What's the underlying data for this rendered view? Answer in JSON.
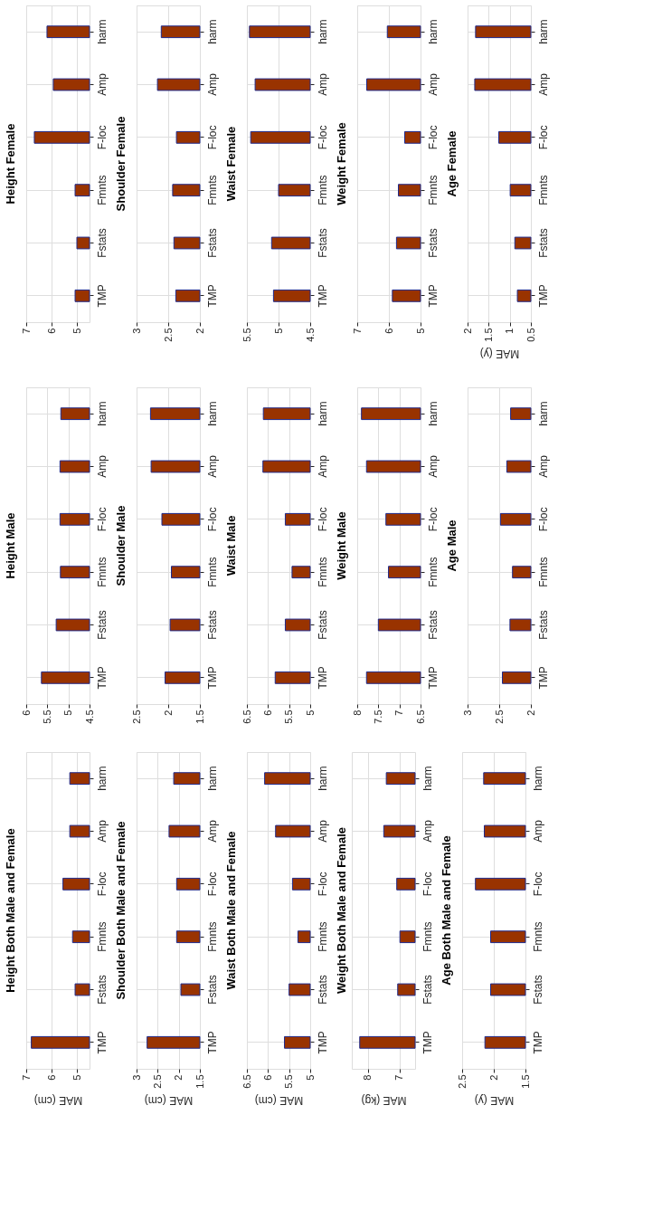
{
  "chart_data": [
    {
      "type": "bar",
      "orientation": "horizontal",
      "title": "Height  Female",
      "categories": [
        "harm",
        "Amp",
        "F-loc",
        "Fmnts",
        "Fstats",
        "TMP"
      ],
      "values": [
        6.18,
        5.93,
        6.68,
        5.07,
        5.0,
        5.07
      ],
      "color": "#993300",
      "xlim": [
        7,
        4.5
      ],
      "xticks": [
        7,
        6,
        5
      ],
      "grid": true
    },
    {
      "type": "bar",
      "orientation": "horizontal",
      "title": "Shoulder  Female",
      "categories": [
        "harm",
        "Amp",
        "F-loc",
        "Fmnts",
        "Fstats",
        "TMP"
      ],
      "values": [
        2.61,
        2.67,
        2.37,
        2.43,
        2.41,
        2.38
      ],
      "color": "#993300",
      "xlim": [
        3,
        2
      ],
      "xticks": [
        3,
        2.5,
        2
      ],
      "grid": true
    },
    {
      "type": "bar",
      "orientation": "horizontal",
      "title": "Waist  Female",
      "categories": [
        "harm",
        "Amp",
        "F-loc",
        "Fmnts",
        "Fstats",
        "TMP"
      ],
      "values": [
        5.46,
        5.37,
        5.44,
        5.0,
        5.11,
        5.08
      ],
      "color": "#993300",
      "xlim": [
        5.5,
        4.5
      ],
      "xticks": [
        5.5,
        5,
        4.5
      ],
      "grid": true
    },
    {
      "type": "bar",
      "orientation": "horizontal",
      "title": "Weight  Female",
      "categories": [
        "harm",
        "Amp",
        "F-loc",
        "Fmnts",
        "Fstats",
        "TMP"
      ],
      "values": [
        6.05,
        6.7,
        5.5,
        5.7,
        5.76,
        5.89
      ],
      "color": "#993300",
      "xlim": [
        7,
        5
      ],
      "xticks": [
        7,
        6,
        5
      ],
      "grid": true
    },
    {
      "type": "bar",
      "orientation": "horizontal",
      "title": "Age  Female",
      "xlabel": "MAE (y)",
      "categories": [
        "harm",
        "Amp",
        "F-loc",
        "Fmnts",
        "Fstats",
        "TMP"
      ],
      "values": [
        1.81,
        1.83,
        1.26,
        0.99,
        0.88,
        0.82
      ],
      "color": "#993300",
      "xlim": [
        2,
        0.5
      ],
      "xticks": [
        2,
        1.5,
        1,
        0.5
      ],
      "grid": true
    },
    {
      "type": "bar",
      "orientation": "horizontal",
      "title": "Height  Male",
      "categories": [
        "harm",
        "Amp",
        "F-loc",
        "Fmnts",
        "Fstats",
        "TMP"
      ],
      "values": [
        5.18,
        5.2,
        5.2,
        5.19,
        5.29,
        5.64
      ],
      "color": "#993300",
      "xlim": [
        6,
        4.5
      ],
      "xticks": [
        6,
        5.5,
        5,
        4.5
      ],
      "grid": true
    },
    {
      "type": "bar",
      "orientation": "horizontal",
      "title": "Shoulder  Male",
      "categories": [
        "harm",
        "Amp",
        "F-loc",
        "Fmnts",
        "Fstats",
        "TMP"
      ],
      "values": [
        2.28,
        2.27,
        2.1,
        1.95,
        1.97,
        2.05
      ],
      "color": "#993300",
      "xlim": [
        2.5,
        1.5
      ],
      "xticks": [
        2.5,
        2,
        1.5
      ],
      "grid": true
    },
    {
      "type": "bar",
      "orientation": "horizontal",
      "title": "Waist  Male",
      "categories": [
        "harm",
        "Amp",
        "F-loc",
        "Fmnts",
        "Fstats",
        "TMP"
      ],
      "values": [
        6.11,
        6.12,
        5.59,
        5.43,
        5.59,
        5.83
      ],
      "color": "#993300",
      "xlim": [
        6.5,
        5
      ],
      "xticks": [
        6.5,
        6,
        5.5,
        5
      ],
      "grid": true
    },
    {
      "type": "bar",
      "orientation": "horizontal",
      "title": "Weight  Male",
      "categories": [
        "harm",
        "Amp",
        "F-loc",
        "Fmnts",
        "Fstats",
        "TMP"
      ],
      "values": [
        7.9,
        7.78,
        7.32,
        7.26,
        7.5,
        7.78
      ],
      "color": "#993300",
      "xlim": [
        8,
        6.5
      ],
      "xticks": [
        8,
        7.5,
        7,
        6.5
      ],
      "grid": true
    },
    {
      "type": "bar",
      "orientation": "horizontal",
      "title": "Age  Male",
      "categories": [
        "harm",
        "Amp",
        "F-loc",
        "Fmnts",
        "Fstats",
        "TMP"
      ],
      "values": [
        2.32,
        2.38,
        2.48,
        2.29,
        2.33,
        2.45
      ],
      "color": "#993300",
      "xlim": [
        3,
        2
      ],
      "xticks": [
        3,
        2.5,
        2
      ],
      "grid": true
    },
    {
      "type": "bar",
      "orientation": "horizontal",
      "title": "Height Both Male and Female",
      "xlabel": "MAE (cm)",
      "categories": [
        "harm",
        "Amp",
        "F-loc",
        "Fmnts",
        "Fstats",
        "TMP"
      ],
      "values": [
        5.28,
        5.28,
        5.55,
        5.17,
        5.07,
        6.8
      ],
      "color": "#993300",
      "xlim": [
        7,
        4.5
      ],
      "xticks": [
        7,
        6,
        5
      ],
      "grid": true
    },
    {
      "type": "bar",
      "orientation": "horizontal",
      "title": "Shoulder Both Male and Female",
      "xlabel": "MAE (cm)",
      "categories": [
        "harm",
        "Amp",
        "F-loc",
        "Fmnts",
        "Fstats",
        "TMP"
      ],
      "values": [
        2.12,
        2.23,
        2.05,
        2.05,
        1.95,
        2.75
      ],
      "color": "#993300",
      "xlim": [
        3,
        1.5
      ],
      "xticks": [
        3,
        2.5,
        2,
        1.5
      ],
      "grid": true
    },
    {
      "type": "bar",
      "orientation": "horizontal",
      "title": "Waist Both Male and Female",
      "xlabel": "MAE (cm)",
      "categories": [
        "harm",
        "Amp",
        "F-loc",
        "Fmnts",
        "Fstats",
        "TMP"
      ],
      "values": [
        6.08,
        5.82,
        5.42,
        5.29,
        5.5,
        5.61
      ],
      "color": "#993300",
      "xlim": [
        6.5,
        5
      ],
      "xticks": [
        6.5,
        6,
        5.5,
        5
      ],
      "grid": true
    },
    {
      "type": "bar",
      "orientation": "horizontal",
      "title": "Weight Both Male and Female",
      "xlabel": "MAE (kg)",
      "categories": [
        "harm",
        "Amp",
        "F-loc",
        "Fmnts",
        "Fstats",
        "TMP"
      ],
      "values": [
        7.41,
        7.49,
        7.08,
        6.98,
        7.05,
        8.25
      ],
      "color": "#993300",
      "xlim": [
        8.5,
        6.5
      ],
      "xticks": [
        8,
        7
      ],
      "grid": true
    },
    {
      "type": "bar",
      "orientation": "horizontal",
      "title": "Age Both Male and Female",
      "xlabel": "MAE (y)",
      "categories": [
        "harm",
        "Amp",
        "F-loc",
        "Fmnts",
        "Fstats",
        "TMP"
      ],
      "values": [
        2.16,
        2.15,
        2.29,
        2.05,
        2.05,
        2.14
      ],
      "color": "#993300",
      "xlim": [
        2.5,
        1.5
      ],
      "xticks": [
        2.5,
        2,
        1.5
      ],
      "grid": true
    }
  ]
}
